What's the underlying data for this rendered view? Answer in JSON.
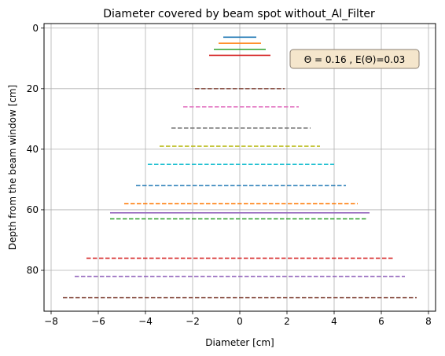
{
  "chart_data": {
    "type": "line",
    "title": "Diameter covered by beam spot without_Al_Filter",
    "xlabel": "Diameter [cm]",
    "ylabel": "Depth from the beam window [cm]",
    "xlim": [
      -8.3,
      8.3
    ],
    "ylim": [
      93.5,
      -1.5
    ],
    "y_inverted": true,
    "grid": true,
    "x_ticks": [
      -8,
      -6,
      -4,
      -2,
      0,
      2,
      4,
      6,
      8
    ],
    "y_ticks": [
      0,
      20,
      40,
      60,
      80
    ],
    "annotation": {
      "text": "Θ = 0.16 ,  E(Θ)=0.03",
      "box_fill": "#f5e6cc",
      "box_edge": "#8a7f72"
    },
    "segments": [
      {
        "y": 3,
        "x": [
          -0.7,
          0.7
        ],
        "style": "solid",
        "color": "#1f77b4"
      },
      {
        "y": 5,
        "x": [
          -0.9,
          0.9
        ],
        "style": "solid",
        "color": "#ff7f0e"
      },
      {
        "y": 7,
        "x": [
          -1.1,
          1.1
        ],
        "style": "solid",
        "color": "#2ca02c"
      },
      {
        "y": 9,
        "x": [
          -1.3,
          1.3
        ],
        "style": "solid",
        "color": "#d62728"
      },
      {
        "y": 20,
        "x": [
          -1.9,
          1.9
        ],
        "style": "dashed",
        "color": "#8c564b"
      },
      {
        "y": 26,
        "x": [
          -2.4,
          2.5
        ],
        "style": "dashed",
        "color": "#e377c2"
      },
      {
        "y": 33,
        "x": [
          -2.9,
          3.0
        ],
        "style": "dashed",
        "color": "#7f7f7f"
      },
      {
        "y": 39,
        "x": [
          -3.4,
          3.4
        ],
        "style": "dashed",
        "color": "#bcbd22"
      },
      {
        "y": 45,
        "x": [
          -3.9,
          4.0
        ],
        "style": "dashed",
        "color": "#17becf"
      },
      {
        "y": 52,
        "x": [
          -4.4,
          4.5
        ],
        "style": "dashed",
        "color": "#1f77b4"
      },
      {
        "y": 58,
        "x": [
          -4.9,
          5.0
        ],
        "style": "dashed",
        "color": "#ff7f0e"
      },
      {
        "y": 61,
        "x": [
          -5.5,
          5.5
        ],
        "style": "solid",
        "color": "#9467bd"
      },
      {
        "y": 63,
        "x": [
          -5.5,
          5.4
        ],
        "style": "dashed",
        "color": "#2ca02c"
      },
      {
        "y": 76,
        "x": [
          -6.5,
          6.5
        ],
        "style": "dashed",
        "color": "#d62728"
      },
      {
        "y": 82,
        "x": [
          -7.0,
          7.0
        ],
        "style": "dashed",
        "color": "#9467bd"
      },
      {
        "y": 89,
        "x": [
          -7.5,
          7.5
        ],
        "style": "dashed",
        "color": "#8c564b"
      }
    ]
  }
}
